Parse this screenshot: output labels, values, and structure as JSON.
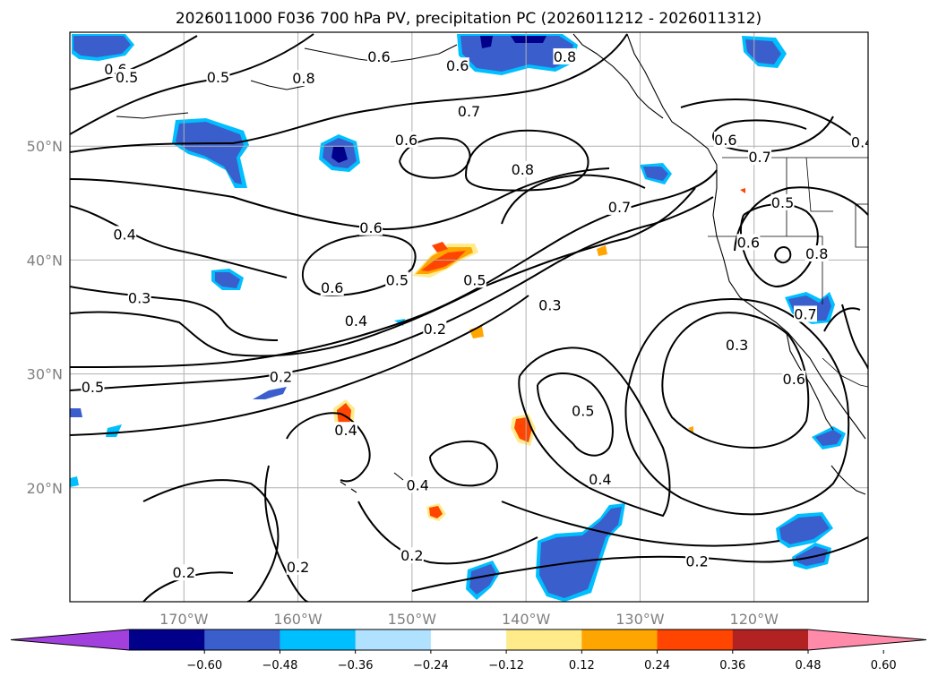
{
  "title": "2026011000 F036 700 hPa PV, precipitation PC (2026011212 - 2026011312)",
  "map": {
    "lon_range": [
      -180,
      -110
    ],
    "lat_range": [
      10,
      60
    ],
    "lat_ticks": [
      {
        "value": 20,
        "label": "20°N"
      },
      {
        "value": 30,
        "label": "30°N"
      },
      {
        "value": 40,
        "label": "40°N"
      },
      {
        "value": 50,
        "label": "50°N"
      }
    ],
    "lon_ticks": [
      {
        "value": -170,
        "label": "170°W"
      },
      {
        "value": -160,
        "label": "160°W"
      },
      {
        "value": -150,
        "label": "150°W"
      },
      {
        "value": -140,
        "label": "140°W"
      },
      {
        "value": -130,
        "label": "130°W"
      },
      {
        "value": -120,
        "label": "120°W"
      }
    ],
    "contour_labels": [
      {
        "lon": -176.0,
        "lat": 56.7,
        "text": "0.6"
      },
      {
        "lon": -175.0,
        "lat": 56.0,
        "text": "0.5"
      },
      {
        "lon": -159.5,
        "lat": 55.9,
        "text": "0.8"
      },
      {
        "lon": -167.0,
        "lat": 56.0,
        "text": "0.5"
      },
      {
        "lon": -152.9,
        "lat": 57.8,
        "text": "0.6"
      },
      {
        "lon": -146.0,
        "lat": 57.0,
        "text": "0.6"
      },
      {
        "lon": -136.6,
        "lat": 57.8,
        "text": "0.8"
      },
      {
        "lon": -145.0,
        "lat": 53.0,
        "text": "0.7"
      },
      {
        "lon": -150.5,
        "lat": 50.5,
        "text": "0.6"
      },
      {
        "lon": -140.3,
        "lat": 47.9,
        "text": "0.8"
      },
      {
        "lon": -131.8,
        "lat": 44.6,
        "text": "0.7"
      },
      {
        "lon": -153.6,
        "lat": 42.8,
        "text": "0.6"
      },
      {
        "lon": -175.2,
        "lat": 42.2,
        "text": "0.4"
      },
      {
        "lon": -173.9,
        "lat": 36.6,
        "text": "0.3"
      },
      {
        "lon": -157.0,
        "lat": 37.5,
        "text": "0.6"
      },
      {
        "lon": -151.3,
        "lat": 38.2,
        "text": "0.5"
      },
      {
        "lon": -144.5,
        "lat": 38.2,
        "text": "0.5"
      },
      {
        "lon": -154.9,
        "lat": 34.6,
        "text": "0.4"
      },
      {
        "lon": -148.0,
        "lat": 33.9,
        "text": "0.2"
      },
      {
        "lon": -137.9,
        "lat": 36.0,
        "text": "0.3"
      },
      {
        "lon": -161.5,
        "lat": 29.7,
        "text": "0.2"
      },
      {
        "lon": -178.0,
        "lat": 28.8,
        "text": "0.5"
      },
      {
        "lon": -155.8,
        "lat": 25.0,
        "text": "0.4"
      },
      {
        "lon": -149.5,
        "lat": 20.2,
        "text": "0.4"
      },
      {
        "lon": -135.0,
        "lat": 26.7,
        "text": "0.5"
      },
      {
        "lon": -133.5,
        "lat": 20.7,
        "text": "0.4"
      },
      {
        "lon": -121.5,
        "lat": 32.5,
        "text": "0.3"
      },
      {
        "lon": -116.5,
        "lat": 29.5,
        "text": "0.6"
      },
      {
        "lon": -115.5,
        "lat": 35.2,
        "text": "0.7"
      },
      {
        "lon": -114.5,
        "lat": 40.5,
        "text": "0.8"
      },
      {
        "lon": -120.5,
        "lat": 41.5,
        "text": "0.6"
      },
      {
        "lon": -117.5,
        "lat": 45.0,
        "text": "0.5"
      },
      {
        "lon": -119.5,
        "lat": 49.0,
        "text": "0.7"
      },
      {
        "lon": -122.5,
        "lat": 50.5,
        "text": "0.6"
      },
      {
        "lon": -110.5,
        "lat": 50.3,
        "text": "0.4"
      },
      {
        "lon": -125.0,
        "lat": 13.5,
        "text": "0.2"
      },
      {
        "lon": -150.0,
        "lat": 14.0,
        "text": "0.2"
      },
      {
        "lon": -170.0,
        "lat": 12.5,
        "text": "0.2"
      },
      {
        "lon": -160.0,
        "lat": 13.0,
        "text": "0.2"
      }
    ]
  },
  "colorbar": {
    "ticks": [
      {
        "value": -0.6,
        "label": "−0.60"
      },
      {
        "value": -0.48,
        "label": "−0.48"
      },
      {
        "value": -0.36,
        "label": "−0.36"
      },
      {
        "value": -0.24,
        "label": "−0.24"
      },
      {
        "value": -0.12,
        "label": "−0.12"
      },
      {
        "value": 0.12,
        "label": "0.12"
      },
      {
        "value": 0.24,
        "label": "0.24"
      },
      {
        "value": 0.36,
        "label": "0.36"
      },
      {
        "value": 0.48,
        "label": "0.48"
      },
      {
        "value": 0.6,
        "label": "0.60"
      }
    ],
    "colors": [
      "#a140dc",
      "#00008b",
      "#3a5fcd",
      "#00bfff",
      "#b0e2ff",
      "#ffffff",
      "#ffeb8a",
      "#ffa500",
      "#ff4500",
      "#b22222",
      "#ff8aaa"
    ]
  }
}
